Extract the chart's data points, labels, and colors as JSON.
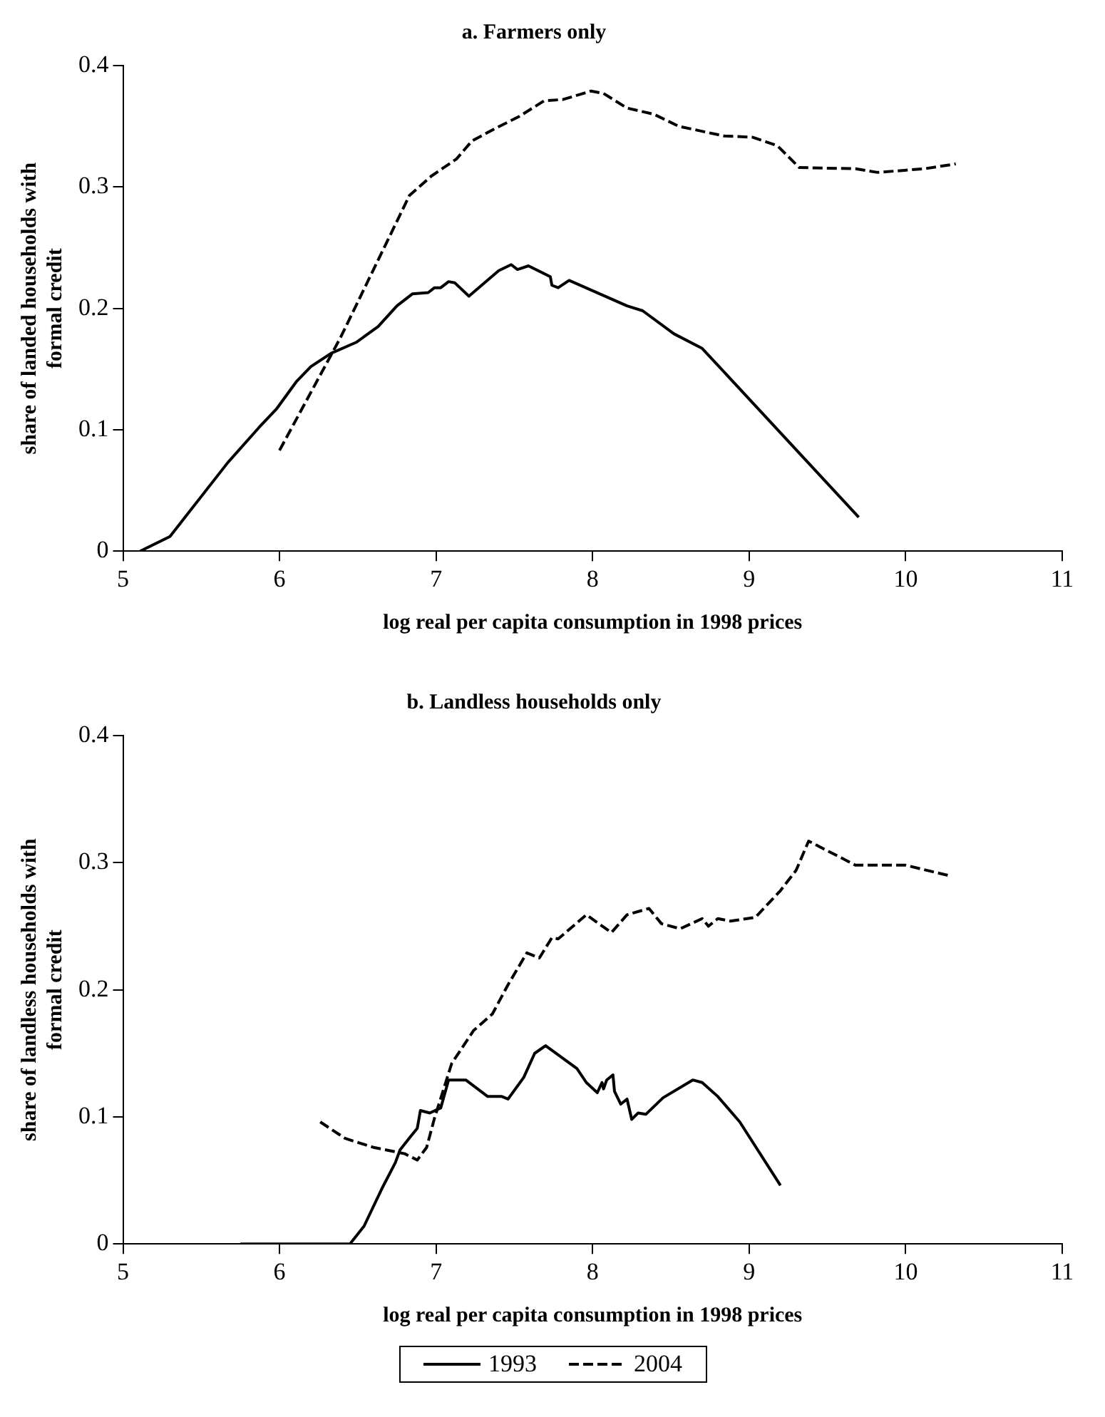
{
  "chart_data": [
    {
      "type": "line",
      "title": "a. Farmers only",
      "xlabel": "log real per capita consumption in 1998 prices",
      "ylabel": "share of landed households with formal credit",
      "xlim": [
        5,
        11
      ],
      "xticks": [
        5,
        6,
        7,
        8,
        9,
        10,
        11
      ],
      "ylim": [
        0,
        0.4
      ],
      "yticks": [
        0,
        0.1,
        0.2,
        0.3,
        0.4
      ],
      "grid": false,
      "marker": "none",
      "series": [
        {
          "color": "#000000",
          "line_style": "solid",
          "x": [
            5.11,
            5.3,
            5.67,
            5.87,
            5.98,
            6.11,
            6.2,
            6.33,
            6.49,
            6.63,
            6.75,
            6.85,
            6.95,
            6.99,
            7.03,
            7.08,
            7.12,
            7.21,
            7.4,
            7.48,
            7.52,
            7.59,
            7.73,
            7.74,
            7.78,
            7.85,
            8.22,
            8.32,
            8.52,
            8.7,
            9.7
          ],
          "values": [
            0,
            0.012,
            0.073,
            0.102,
            0.117,
            0.14,
            0.152,
            0.163,
            0.172,
            0.185,
            0.202,
            0.212,
            0.213,
            0.217,
            0.217,
            0.222,
            0.221,
            0.21,
            0.231,
            0.236,
            0.232,
            0.235,
            0.226,
            0.219,
            0.217,
            0.223,
            0.202,
            0.198,
            0.179,
            0.167,
            0.028
          ]
        },
        {
          "color": "#000000",
          "line_style": "dashed",
          "x": [
            6.0,
            6.39,
            6.83,
            6.97,
            7.13,
            7.23,
            7.39,
            7.53,
            7.69,
            7.81,
            7.99,
            8.07,
            8.22,
            8.39,
            8.55,
            8.84,
            9.02,
            9.18,
            9.32,
            9.68,
            9.82,
            10.12,
            10.32
          ],
          "values": [
            0.083,
            0.176,
            0.293,
            0.309,
            0.323,
            0.338,
            0.349,
            0.358,
            0.371,
            0.372,
            0.379,
            0.377,
            0.365,
            0.36,
            0.35,
            0.342,
            0.341,
            0.334,
            0.316,
            0.315,
            0.312,
            0.315,
            0.319
          ]
        }
      ]
    },
    {
      "type": "line",
      "title": "b. Landless households only",
      "xlabel": "log real per capita consumption in 1998 prices",
      "ylabel": "share of landless households with formal credit",
      "xlim": [
        5,
        11
      ],
      "xticks": [
        5,
        6,
        7,
        8,
        9,
        10,
        11
      ],
      "ylim": [
        0,
        0.4
      ],
      "yticks": [
        0,
        0.1,
        0.2,
        0.3,
        0.4
      ],
      "grid": false,
      "marker": "none",
      "legend": "bottom",
      "series": [
        {
          "name": "1993",
          "color": "#000000",
          "line_style": "solid",
          "x": [
            5.75,
            6.45,
            6.54,
            6.66,
            6.74,
            6.77,
            6.84,
            6.88,
            6.9,
            6.96,
            7.03,
            7.08,
            7.19,
            7.33,
            7.42,
            7.46,
            7.56,
            7.63,
            7.7,
            7.9,
            7.96,
            8.03,
            8.06,
            8.07,
            8.09,
            8.13,
            8.14,
            8.18,
            8.22,
            8.25,
            8.29,
            8.34,
            8.45,
            8.64,
            8.7,
            8.8,
            8.94,
            9.2
          ],
          "values": [
            0,
            0,
            0.014,
            0.045,
            0.064,
            0.074,
            0.085,
            0.091,
            0.105,
            0.103,
            0.107,
            0.129,
            0.129,
            0.116,
            0.116,
            0.114,
            0.131,
            0.15,
            0.156,
            0.138,
            0.127,
            0.119,
            0.127,
            0.122,
            0.129,
            0.133,
            0.12,
            0.11,
            0.114,
            0.098,
            0.103,
            0.102,
            0.115,
            0.129,
            0.127,
            0.116,
            0.096,
            0.046
          ]
        },
        {
          "name": "2004",
          "color": "#000000",
          "line_style": "dashed",
          "x": [
            6.26,
            6.42,
            6.6,
            6.8,
            6.88,
            6.94,
            6.99,
            7.1,
            7.24,
            7.36,
            7.46,
            7.58,
            7.66,
            7.74,
            7.78,
            7.96,
            8.12,
            8.22,
            8.36,
            8.44,
            8.56,
            8.7,
            8.74,
            8.8,
            8.88,
            9.04,
            9.2,
            9.3,
            9.38,
            9.68,
            10.0,
            10.27
          ],
          "values": [
            0.096,
            0.083,
            0.076,
            0.071,
            0.066,
            0.076,
            0.099,
            0.142,
            0.168,
            0.181,
            0.204,
            0.229,
            0.225,
            0.241,
            0.24,
            0.259,
            0.245,
            0.259,
            0.264,
            0.252,
            0.248,
            0.256,
            0.25,
            0.256,
            0.254,
            0.257,
            0.278,
            0.294,
            0.317,
            0.298,
            0.298,
            0.29
          ]
        }
      ]
    }
  ]
}
